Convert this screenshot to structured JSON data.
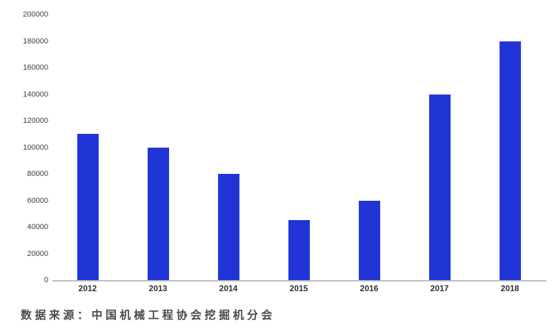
{
  "chart_data": {
    "type": "bar",
    "title": "",
    "categories": [
      "2012",
      "2013",
      "2014",
      "2015",
      "2016",
      "2017",
      "2018"
    ],
    "values": [
      110000,
      100000,
      80000,
      45000,
      60000,
      140000,
      180000
    ],
    "xlabel": "",
    "ylabel": "",
    "ylim": [
      0,
      200000
    ],
    "yticks": [
      0,
      20000,
      40000,
      60000,
      80000,
      100000,
      120000,
      140000,
      160000,
      180000,
      200000
    ],
    "ytick_labels": [
      "0",
      "20000",
      "40000",
      "60000",
      "80000",
      "100000",
      "120000",
      "140000",
      "160000",
      "180000",
      "200000"
    ],
    "grid": false,
    "legend": null,
    "bar_color": "#2135d6",
    "axis_color": "#bcbcbc"
  },
  "caption": {
    "text": "数据来源：中国机械工程协会挖掘机分会"
  },
  "colors": {
    "background": "#ffffff",
    "bar": "#2135d6",
    "axis_line": "#bcbcbc",
    "tick_text": "#3d3d3d",
    "caption_text": "#4a4a4a"
  }
}
